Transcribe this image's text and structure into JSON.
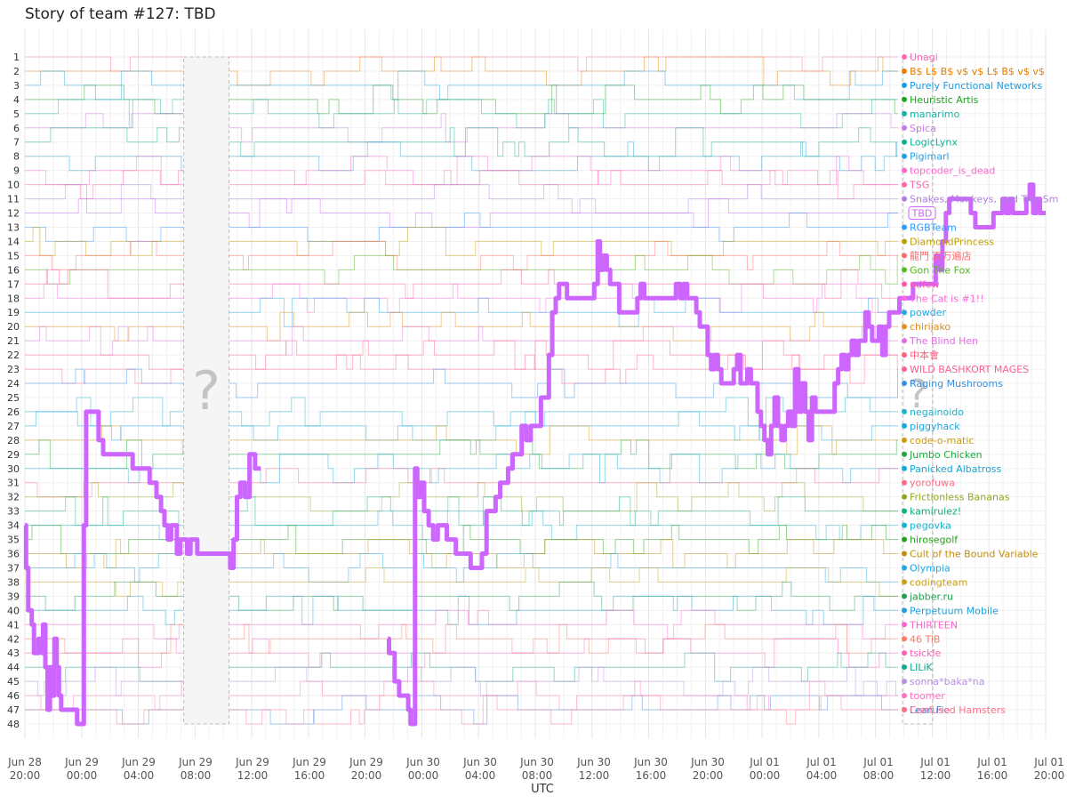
{
  "chart_data": {
    "type": "line",
    "title": "Story of team #127: TBD",
    "xlabel": "UTC",
    "ylabel": "",
    "y_axis": {
      "ranks": [
        1,
        48
      ],
      "inverted": true
    },
    "x_axis": {
      "range": [
        "Jun 28 20:00",
        "Jul 01 20:00"
      ],
      "ticks": [
        {
          "date": "Jun 28",
          "time": "20:00"
        },
        {
          "date": "Jun 29",
          "time": "00:00"
        },
        {
          "date": "Jun 29",
          "time": "04:00"
        },
        {
          "date": "Jun 29",
          "time": "08:00"
        },
        {
          "date": "Jun 29",
          "time": "12:00"
        },
        {
          "date": "Jun 29",
          "time": "16:00"
        },
        {
          "date": "Jun 29",
          "time": "20:00"
        },
        {
          "date": "Jun 30",
          "time": "00:00"
        },
        {
          "date": "Jun 30",
          "time": "04:00"
        },
        {
          "date": "Jun 30",
          "time": "08:00"
        },
        {
          "date": "Jun 30",
          "time": "12:00"
        },
        {
          "date": "Jun 30",
          "time": "16:00"
        },
        {
          "date": "Jun 30",
          "time": "20:00"
        },
        {
          "date": "Jul 01",
          "time": "00:00"
        },
        {
          "date": "Jul 01",
          "time": "04:00"
        },
        {
          "date": "Jul 01",
          "time": "08:00"
        },
        {
          "date": "Jul 01",
          "time": "12:00"
        },
        {
          "date": "Jul 01",
          "time": "16:00"
        },
        {
          "date": "Jul 01",
          "time": "20:00"
        }
      ]
    },
    "grid": true,
    "unknown_periods": [
      {
        "start_hours": 14.0,
        "end_hours": 18.0,
        "label": "?"
      },
      {
        "start_hours": 62.0,
        "end_hours": 64.0,
        "label": "?"
      }
    ],
    "highlight_team": {
      "name": "TBD",
      "color": "#cc66ff",
      "final_rank": 12,
      "ranks": [
        [
          0.0,
          34
        ],
        [
          0.1,
          37
        ],
        [
          0.3,
          40
        ],
        [
          0.6,
          41
        ],
        [
          0.8,
          43
        ],
        [
          1.1,
          43
        ],
        [
          1.2,
          42
        ],
        [
          1.5,
          43
        ],
        [
          1.6,
          41
        ],
        [
          1.8,
          44
        ],
        [
          2.0,
          47
        ],
        [
          2.2,
          44
        ],
        [
          2.4,
          46
        ],
        [
          2.6,
          42
        ],
        [
          2.8,
          44
        ],
        [
          3.0,
          46
        ],
        [
          3.2,
          47
        ],
        [
          3.6,
          47
        ],
        [
          4.0,
          47
        ],
        [
          4.4,
          47
        ],
        [
          4.6,
          48
        ],
        [
          5.0,
          48
        ],
        [
          5.2,
          34
        ],
        [
          5.4,
          26
        ],
        [
          5.7,
          26
        ],
        [
          6.2,
          26
        ],
        [
          6.5,
          28
        ],
        [
          6.9,
          29
        ],
        [
          7.5,
          29
        ],
        [
          8.0,
          29
        ],
        [
          8.5,
          29
        ],
        [
          9.5,
          30
        ],
        [
          10.0,
          30
        ],
        [
          10.5,
          30
        ],
        [
          11.0,
          31
        ],
        [
          11.4,
          31
        ],
        [
          11.6,
          32
        ],
        [
          12.0,
          33
        ],
        [
          12.3,
          34
        ],
        [
          12.6,
          35
        ],
        [
          12.9,
          34
        ],
        [
          13.2,
          34
        ],
        [
          13.4,
          36
        ],
        [
          13.7,
          35
        ],
        [
          14.0,
          35
        ],
        [
          14.3,
          36
        ],
        [
          14.6,
          35
        ],
        [
          14.9,
          35
        ],
        [
          15.2,
          36
        ],
        [
          15.8,
          36
        ],
        [
          16.4,
          36
        ],
        [
          17.0,
          36
        ],
        [
          17.5,
          36
        ],
        [
          17.9,
          36
        ],
        [
          18.1,
          37
        ],
        [
          18.4,
          35
        ],
        [
          18.7,
          32
        ],
        [
          19.0,
          31
        ],
        [
          19.4,
          32
        ],
        [
          19.8,
          29
        ],
        [
          20.3,
          30
        ],
        [
          20.8,
          30
        ],
        [
          32.0,
          42
        ],
        [
          32.1,
          43
        ],
        [
          32.4,
          43
        ],
        [
          32.6,
          45
        ],
        [
          33.0,
          46
        ],
        [
          33.5,
          46
        ],
        [
          33.8,
          47
        ],
        [
          34.0,
          48
        ],
        [
          34.2,
          48
        ],
        [
          34.4,
          30
        ],
        [
          34.6,
          32
        ],
        [
          34.9,
          31
        ],
        [
          35.2,
          33
        ],
        [
          35.6,
          34
        ],
        [
          36.0,
          35
        ],
        [
          36.4,
          34
        ],
        [
          36.8,
          34
        ],
        [
          37.2,
          35
        ],
        [
          37.6,
          35
        ],
        [
          38.0,
          36
        ],
        [
          38.6,
          36
        ],
        [
          39.3,
          37
        ],
        [
          40.0,
          37
        ],
        [
          40.3,
          36
        ],
        [
          40.7,
          33
        ],
        [
          41.1,
          33
        ],
        [
          41.5,
          32
        ],
        [
          41.9,
          31
        ],
        [
          42.3,
          31
        ],
        [
          42.6,
          30
        ],
        [
          43.0,
          29
        ],
        [
          43.4,
          29
        ],
        [
          43.8,
          27
        ],
        [
          44.2,
          28
        ],
        [
          44.6,
          27
        ],
        [
          45.0,
          27
        ],
        [
          45.5,
          25
        ],
        [
          45.9,
          25
        ],
        [
          46.2,
          22
        ],
        [
          46.5,
          19
        ],
        [
          46.8,
          18
        ],
        [
          47.1,
          17
        ],
        [
          47.5,
          17
        ],
        [
          47.8,
          18
        ],
        [
          48.2,
          18
        ],
        [
          48.6,
          18
        ],
        [
          49.0,
          18
        ],
        [
          49.4,
          18
        ],
        [
          49.8,
          18
        ],
        [
          50.2,
          17
        ],
        [
          50.5,
          14
        ],
        [
          50.7,
          16
        ],
        [
          51.0,
          15
        ],
        [
          51.3,
          16
        ],
        [
          51.6,
          17
        ],
        [
          52.0,
          17
        ],
        [
          52.4,
          19
        ],
        [
          52.8,
          19
        ],
        [
          53.2,
          19
        ],
        [
          53.6,
          19
        ],
        [
          54.0,
          18
        ],
        [
          54.3,
          17
        ],
        [
          54.6,
          18
        ],
        [
          55.0,
          18
        ],
        [
          55.4,
          18
        ],
        [
          55.8,
          18
        ],
        [
          56.2,
          18
        ],
        [
          56.6,
          18
        ],
        [
          57.0,
          18
        ],
        [
          57.4,
          17
        ],
        [
          57.8,
          18
        ],
        [
          58.1,
          17
        ],
        [
          58.4,
          18
        ],
        [
          58.8,
          18
        ],
        [
          59.2,
          19
        ],
        [
          59.5,
          20
        ],
        [
          59.9,
          20
        ],
        [
          60.2,
          22
        ],
        [
          60.5,
          23
        ],
        [
          60.8,
          22
        ],
        [
          61.1,
          23
        ],
        [
          61.4,
          24
        ],
        [
          61.8,
          24
        ],
        [
          62.2,
          24
        ],
        [
          62.5,
          23
        ],
        [
          62.8,
          22
        ],
        [
          63.1,
          24
        ],
        [
          63.4,
          24
        ],
        [
          63.7,
          23
        ],
        [
          64.0,
          24
        ],
        [
          64.3,
          24
        ],
        [
          64.6,
          26
        ],
        [
          64.9,
          27
        ],
        [
          65.2,
          28
        ],
        [
          65.5,
          29
        ],
        [
          65.8,
          27
        ],
        [
          66.1,
          25
        ],
        [
          66.4,
          27
        ],
        [
          66.7,
          28
        ],
        [
          67.0,
          27
        ],
        [
          67.3,
          26
        ],
        [
          67.6,
          27
        ],
        [
          67.9,
          23
        ],
        [
          68.2,
          26
        ],
        [
          68.5,
          24
        ],
        [
          68.8,
          26
        ],
        [
          69.1,
          28
        ],
        [
          69.4,
          25
        ],
        [
          69.7,
          26
        ],
        [
          70.0,
          26
        ],
        [
          70.5,
          26
        ],
        [
          71.0,
          26
        ],
        [
          71.4,
          24
        ],
        [
          71.7,
          23
        ],
        [
          72.0,
          22
        ],
        [
          72.3,
          23
        ],
        [
          72.6,
          22
        ],
        [
          72.9,
          21
        ],
        [
          73.2,
          22
        ],
        [
          73.5,
          21
        ],
        [
          73.8,
          21
        ],
        [
          74.1,
          19
        ],
        [
          74.4,
          20
        ],
        [
          74.7,
          21
        ],
        [
          75.0,
          21
        ],
        [
          75.3,
          20
        ],
        [
          75.6,
          22
        ],
        [
          75.9,
          20
        ],
        [
          76.2,
          19
        ],
        [
          76.5,
          19
        ],
        [
          76.8,
          19
        ],
        [
          77.1,
          18
        ],
        [
          77.5,
          18
        ],
        [
          77.9,
          18
        ],
        [
          78.3,
          17
        ],
        [
          78.7,
          17
        ],
        [
          79.1,
          17
        ],
        [
          79.5,
          17
        ],
        [
          79.9,
          17
        ],
        [
          80.3,
          15
        ],
        [
          80.6,
          16
        ],
        [
          80.9,
          14
        ],
        [
          81.2,
          12
        ],
        [
          81.5,
          11
        ],
        [
          81.8,
          11
        ],
        [
          82.2,
          11
        ],
        [
          82.6,
          11
        ],
        [
          83.0,
          11
        ],
        [
          83.4,
          12
        ],
        [
          83.8,
          13
        ],
        [
          84.2,
          13
        ],
        [
          84.6,
          13
        ],
        [
          85.0,
          13
        ],
        [
          85.4,
          12
        ],
        [
          85.8,
          12
        ],
        [
          86.2,
          11
        ],
        [
          86.5,
          12
        ],
        [
          86.8,
          11
        ],
        [
          87.1,
          12
        ],
        [
          87.4,
          12
        ],
        [
          87.7,
          12
        ],
        [
          88.0,
          12
        ],
        [
          88.3,
          11
        ],
        [
          88.6,
          10
        ],
        [
          88.9,
          12
        ],
        [
          89.2,
          11
        ],
        [
          89.5,
          12
        ],
        [
          89.8,
          12
        ],
        [
          90.0,
          12
        ]
      ]
    },
    "teams": [
      {
        "rank": 1,
        "name": "Unagi",
        "color": "#ff69b4"
      },
      {
        "rank": 2,
        "name": "B$ L$ B$ v$ v$ L$ B$ v$ v$",
        "color": "#e67e00"
      },
      {
        "rank": 3,
        "name": "Purely Functional Networks",
        "color": "#1a9ee6"
      },
      {
        "rank": 4,
        "name": "Heuristic Artis",
        "color": "#22a322"
      },
      {
        "rank": 5,
        "name": "manarimo",
        "color": "#1ab3a6"
      },
      {
        "rank": 6,
        "name": "Spica",
        "color": "#c878e8"
      },
      {
        "rank": 7,
        "name": "LogicLynx",
        "color": "#10b090"
      },
      {
        "rank": 8,
        "name": "Pigimarl",
        "color": "#28a0e0"
      },
      {
        "rank": 9,
        "name": "topcoder_is_dead",
        "color": "#ff66cc"
      },
      {
        "rank": 10,
        "name": "TSG",
        "color": "#ff66aa"
      },
      {
        "rank": 11,
        "name": "Snakes, Monkeys, and Two Sm",
        "color": "#b080e0"
      },
      {
        "rank": 12,
        "name": "TBD",
        "color": "#cc66ff"
      },
      {
        "rank": 13,
        "name": "RGBTeam",
        "color": "#3399ff"
      },
      {
        "rank": 14,
        "name": "DiamondPrincess",
        "color": "#c0a000"
      },
      {
        "rank": 15,
        "name": "龍門 百万遍店",
        "color": "#ff6a6a"
      },
      {
        "rank": 16,
        "name": "Gon The Fox",
        "color": "#55b820"
      },
      {
        "rank": 17,
        "name": "udfew",
        "color": "#ff5aa8"
      },
      {
        "rank": 18,
        "name": "The Cat is #1!!",
        "color": "#ff66dd"
      },
      {
        "rank": 19,
        "name": "powder",
        "color": "#22a8e8"
      },
      {
        "rank": 20,
        "name": "chirijako",
        "color": "#e09020"
      },
      {
        "rank": 21,
        "name": "The Blind Hen",
        "color": "#e070e0"
      },
      {
        "rank": 22,
        "name": "中本會",
        "color": "#ff6080"
      },
      {
        "rank": 23,
        "name": "WILD BASHKORT MAGES",
        "color": "#ff6090"
      },
      {
        "rank": 24,
        "name": "Raging Mushrooms",
        "color": "#3a8ee0"
      },
      {
        "rank": 25,
        "name": "",
        "color": "#bbbbbb"
      },
      {
        "rank": 26,
        "name": "negainoido",
        "color": "#20b0c8"
      },
      {
        "rank": 27,
        "name": "piggyhack",
        "color": "#1aa8e0"
      },
      {
        "rank": 28,
        "name": "code-o-matic",
        "color": "#d09a10"
      },
      {
        "rank": 29,
        "name": "Jumbo Chicken",
        "color": "#20a840"
      },
      {
        "rank": 30,
        "name": "Panicked Albatross",
        "color": "#18a8d8"
      },
      {
        "rank": 31,
        "name": "yorofuwa",
        "color": "#ff6a8a"
      },
      {
        "rank": 32,
        "name": "Frictionless Bananas",
        "color": "#90a820"
      },
      {
        "rank": 33,
        "name": "kamirulez!",
        "color": "#10b080"
      },
      {
        "rank": 34,
        "name": "pegovka",
        "color": "#18b0d0"
      },
      {
        "rank": 35,
        "name": "hirosegolf",
        "color": "#28a020"
      },
      {
        "rank": 36,
        "name": "Cult of the Bound Variable",
        "color": "#c09010"
      },
      {
        "rank": 37,
        "name": "Olympia",
        "color": "#20a8e8"
      },
      {
        "rank": 38,
        "name": "codingteam",
        "color": "#c8a010"
      },
      {
        "rank": 39,
        "name": "jabber.ru",
        "color": "#20a050"
      },
      {
        "rank": 40,
        "name": "Perpetuum Mobile",
        "color": "#20a0d8"
      },
      {
        "rank": 41,
        "name": "THIRTEEN",
        "color": "#ff60d0"
      },
      {
        "rank": 42,
        "name": "46 TiB",
        "color": "#ff7860"
      },
      {
        "rank": 43,
        "name": "tsickle",
        "color": "#ff60b8"
      },
      {
        "rank": 44,
        "name": "LILiK",
        "color": "#10a890"
      },
      {
        "rank": 45,
        "name": "sonna*baka*na",
        "color": "#b890e0"
      },
      {
        "rank": 46,
        "name": "toomer",
        "color": "#ff70c0"
      },
      {
        "rank": 47,
        "name": "Lean Fie",
        "color": "#4a8ae0"
      },
      {
        "rank": 47,
        "name": "Confused Hamsters",
        "color": "#ff7088"
      }
    ]
  }
}
